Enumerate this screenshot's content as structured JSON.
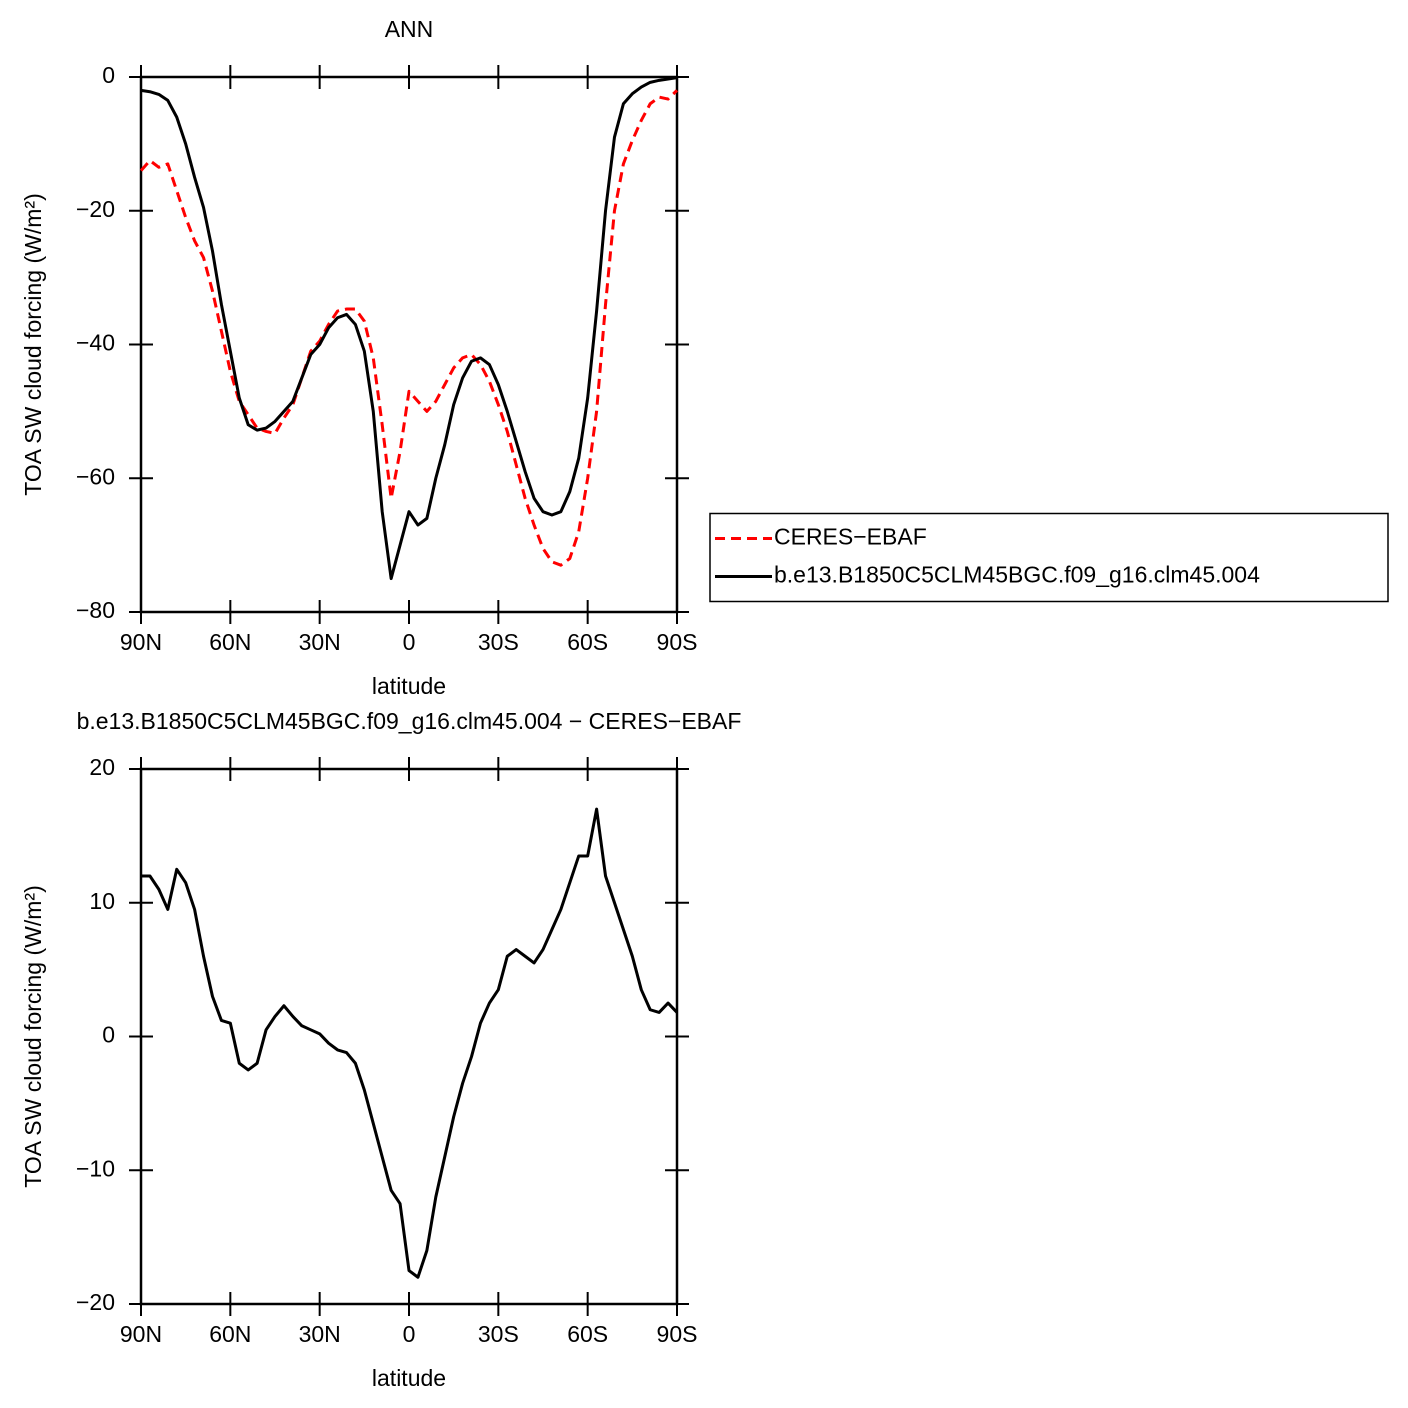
{
  "chart_data": [
    {
      "type": "line",
      "title": "ANN",
      "xlabel": "latitude",
      "ylabel": "TOA SW cloud forcing (W/m²)",
      "x": [
        90,
        87,
        84,
        81,
        78,
        75,
        72,
        69,
        66,
        63,
        60,
        57,
        54,
        51,
        48,
        45,
        42,
        39,
        36,
        33,
        30,
        27,
        24,
        21,
        18,
        15,
        12,
        9,
        6,
        3,
        0,
        -3,
        -6,
        -9,
        -12,
        -15,
        -18,
        -21,
        -24,
        -27,
        -30,
        -33,
        -36,
        -39,
        -42,
        -45,
        -48,
        -51,
        -54,
        -57,
        -60,
        -63,
        -66,
        -69,
        -72,
        -75,
        -78,
        -81,
        -84,
        -87,
        -90
      ],
      "xlim": [
        90,
        -90
      ],
      "xticks": [
        {
          "value": 90,
          "label": "90N"
        },
        {
          "value": 60,
          "label": "60N"
        },
        {
          "value": 30,
          "label": "30N"
        },
        0,
        {
          "value": -30,
          "label": "30S"
        },
        {
          "value": -60,
          "label": "60S"
        },
        {
          "value": -90,
          "label": "90S"
        }
      ],
      "ylim": [
        -80,
        0
      ],
      "yticks": [
        {
          "value": -80,
          "label": "−80"
        },
        {
          "value": -60,
          "label": "−60"
        },
        {
          "value": -40,
          "label": "−40"
        },
        {
          "value": -20,
          "label": "−20"
        },
        0
      ],
      "legend": "right",
      "series": [
        {
          "name": "CERES−EBAF",
          "color": "#ff0000",
          "linestyle": "dashed",
          "values": [
            -14,
            -12.5,
            -13.5,
            -13,
            -17,
            -21,
            -24.5,
            -27,
            -32,
            -38,
            -44,
            -48.5,
            -50.5,
            -52.5,
            -53,
            -53.3,
            -51,
            -49,
            -45,
            -41,
            -39.5,
            -37,
            -35,
            -34.7,
            -34.7,
            -36.5,
            -42,
            -52,
            -63,
            -56,
            -47,
            -48.5,
            -50,
            -48.5,
            -46,
            -43.5,
            -42,
            -41.5,
            -43,
            -45.5,
            -49,
            -53,
            -58,
            -63,
            -67,
            -70.5,
            -72.5,
            -73,
            -72,
            -68,
            -60,
            -50,
            -34,
            -20,
            -13,
            -9.5,
            -6.5,
            -4,
            -3,
            -3.3,
            -2
          ]
        },
        {
          "name": "b.e13.B1850C5CLM45BGC.f09_g16.clm45.004",
          "color": "#000000",
          "linestyle": "solid",
          "values": [
            -2,
            -2.2,
            -2.6,
            -3.5,
            -6,
            -10,
            -15,
            -19.5,
            -26,
            -34,
            -41,
            -48,
            -52,
            -52.8,
            -52.5,
            -51.5,
            -50,
            -48.5,
            -45,
            -41.5,
            -40,
            -37.5,
            -36,
            -35.5,
            -37,
            -41,
            -50,
            -65,
            -75,
            -70,
            -65,
            -67,
            -66,
            -60,
            -55,
            -49,
            -45,
            -42.5,
            -42,
            -43,
            -46,
            -50,
            -54.5,
            -59,
            -63,
            -65,
            -65.5,
            -65,
            -62,
            -57,
            -48,
            -35,
            -20,
            -9,
            -4,
            -2.5,
            -1.5,
            -0.8,
            -0.5,
            -0.3,
            -0.1
          ]
        }
      ]
    },
    {
      "type": "line",
      "title": "b.e13.B1850C5CLM45BGC.f09_g16.clm45.004 − CERES−EBAF",
      "xlabel": "latitude",
      "ylabel": "TOA SW cloud forcing (W/m²)",
      "x": [
        90,
        87,
        84,
        81,
        78,
        75,
        72,
        69,
        66,
        63,
        60,
        57,
        54,
        51,
        48,
        45,
        42,
        39,
        36,
        33,
        30,
        27,
        24,
        21,
        18,
        15,
        12,
        9,
        6,
        3,
        0,
        -3,
        -6,
        -9,
        -12,
        -15,
        -18,
        -21,
        -24,
        -27,
        -30,
        -33,
        -36,
        -39,
        -42,
        -45,
        -48,
        -51,
        -54,
        -57,
        -60,
        -63,
        -66,
        -69,
        -72,
        -75,
        -78,
        -81,
        -84,
        -87,
        -90
      ],
      "xlim": [
        90,
        -90
      ],
      "xticks": [
        {
          "value": 90,
          "label": "90N"
        },
        {
          "value": 60,
          "label": "60N"
        },
        {
          "value": 30,
          "label": "30N"
        },
        0,
        {
          "value": -30,
          "label": "30S"
        },
        {
          "value": -60,
          "label": "60S"
        },
        {
          "value": -90,
          "label": "90S"
        }
      ],
      "ylim": [
        -20,
        20
      ],
      "yticks": [
        {
          "value": -20,
          "label": "−20"
        },
        {
          "value": -10,
          "label": "−10"
        },
        0,
        10,
        20
      ],
      "series": [
        {
          "color": "#000000",
          "linestyle": "solid",
          "values": [
            12,
            12,
            11,
            9.5,
            12.5,
            11.5,
            9.5,
            6,
            3,
            1.2,
            1,
            -2,
            -2.5,
            -2,
            0.5,
            1.5,
            2.3,
            1.5,
            0.8,
            0.5,
            0.2,
            -0.5,
            -1,
            -1.2,
            -2,
            -4,
            -6.5,
            -9,
            -11.5,
            -12.5,
            -17.5,
            -18,
            -16,
            -12,
            -9,
            -6,
            -3.5,
            -1.5,
            1,
            2.5,
            3.5,
            6,
            6.5,
            6,
            5.5,
            6.5,
            8,
            9.5,
            11.5,
            13.5,
            13.5,
            17,
            12,
            10,
            8,
            6,
            3.5,
            2,
            1.8,
            2.5,
            1.8
          ]
        }
      ]
    }
  ]
}
